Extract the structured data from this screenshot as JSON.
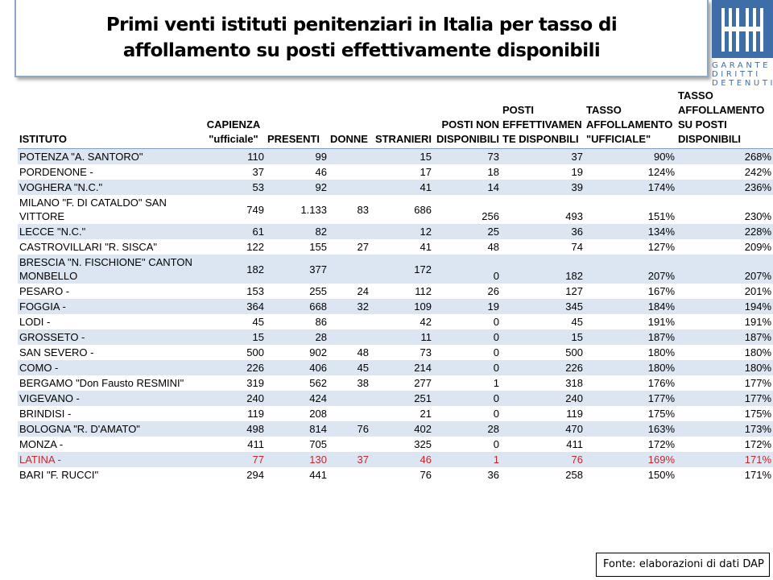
{
  "title": "Primi venti istituti penitenziari in Italia per tasso di affollamento su posti effettivamente disponibili",
  "logo": {
    "lines": [
      "GARANTE",
      "DIRITTI",
      "DETENUTI"
    ]
  },
  "table": {
    "headers": {
      "istituto": "ISTITUTO",
      "capienza_l1": "CAPIENZA",
      "capienza_l2": "\"ufficiale\"",
      "presenti": "PRESENTI",
      "donne": "DONNE",
      "stranieri": "STRANIERI",
      "posti_non_l1": "POSTI NON",
      "posti_non_l2": "DISPONIBILI",
      "posti_eff_l1": "POSTI",
      "posti_eff_l2": "EFFETTIVAMEN",
      "posti_eff_l3": "TE DISPONBILI",
      "tasso_uff_l1": "TASSO",
      "tasso_uff_l2": "AFFOLLAMENTO",
      "tasso_uff_l3": "\"UFFICIALE\"",
      "tasso_disp_l1": "TASSO",
      "tasso_disp_l2": "AFFOLLAMENTO",
      "tasso_disp_l3": "SU POSTI",
      "tasso_disp_l4": "DISPONIBILI"
    },
    "rows": [
      {
        "istituto": "POTENZA \"A. SANTORO\"",
        "capienza": "110",
        "presenti": "99",
        "donne": "",
        "stranieri": "15",
        "posti_non": "73",
        "posti_eff": "37",
        "tasso_uff": "90%",
        "tasso_disp": "268%"
      },
      {
        "istituto": "PORDENONE -",
        "capienza": "37",
        "presenti": "46",
        "donne": "",
        "stranieri": "17",
        "posti_non": "18",
        "posti_eff": "19",
        "tasso_uff": "124%",
        "tasso_disp": "242%"
      },
      {
        "istituto": "VOGHERA \"N.C.\"",
        "capienza": "53",
        "presenti": "92",
        "donne": "",
        "stranieri": "41",
        "posti_non": "14",
        "posti_eff": "39",
        "tasso_uff": "174%",
        "tasso_disp": "236%"
      },
      {
        "istituto": "MILANO \"F. DI CATALDO\" SAN VITTORE",
        "capienza": "749",
        "presenti": "1.133",
        "donne": "83",
        "stranieri": "686",
        "posti_non": "256",
        "posti_eff": "493",
        "tasso_uff": "151%",
        "tasso_disp": "230%"
      },
      {
        "istituto": "LECCE \"N.C.\"",
        "capienza": "61",
        "presenti": "82",
        "donne": "",
        "stranieri": "12",
        "posti_non": "25",
        "posti_eff": "36",
        "tasso_uff": "134%",
        "tasso_disp": "228%"
      },
      {
        "istituto": "CASTROVILLARI \"R. SISCA\"",
        "capienza": "122",
        "presenti": "155",
        "donne": "27",
        "stranieri": "41",
        "posti_non": "48",
        "posti_eff": "74",
        "tasso_uff": "127%",
        "tasso_disp": "209%"
      },
      {
        "istituto": "BRESCIA \"N. FISCHIONE\" CANTON MONBELLO",
        "capienza": "182",
        "presenti": "377",
        "donne": "",
        "stranieri": "172",
        "posti_non": "0",
        "posti_eff": "182",
        "tasso_uff": "207%",
        "tasso_disp": "207%"
      },
      {
        "istituto": "PESARO -",
        "capienza": "153",
        "presenti": "255",
        "donne": "24",
        "stranieri": "112",
        "posti_non": "26",
        "posti_eff": "127",
        "tasso_uff": "167%",
        "tasso_disp": "201%"
      },
      {
        "istituto": "FOGGIA -",
        "capienza": "364",
        "presenti": "668",
        "donne": "32",
        "stranieri": "109",
        "posti_non": "19",
        "posti_eff": "345",
        "tasso_uff": "184%",
        "tasso_disp": "194%"
      },
      {
        "istituto": "LODI -",
        "capienza": "45",
        "presenti": "86",
        "donne": "",
        "stranieri": "42",
        "posti_non": "0",
        "posti_eff": "45",
        "tasso_uff": "191%",
        "tasso_disp": "191%"
      },
      {
        "istituto": "GROSSETO -",
        "capienza": "15",
        "presenti": "28",
        "donne": "",
        "stranieri": "11",
        "posti_non": "0",
        "posti_eff": "15",
        "tasso_uff": "187%",
        "tasso_disp": "187%"
      },
      {
        "istituto": "SAN SEVERO -",
        "capienza": "500",
        "presenti": "902",
        "donne": "48",
        "stranieri": "73",
        "posti_non": "0",
        "posti_eff": "500",
        "tasso_uff": "180%",
        "tasso_disp": "180%"
      },
      {
        "istituto": "COMO -",
        "capienza": "226",
        "presenti": "406",
        "donne": "45",
        "stranieri": "214",
        "posti_non": "0",
        "posti_eff": "226",
        "tasso_uff": "180%",
        "tasso_disp": "180%"
      },
      {
        "istituto": "BERGAMO \"Don Fausto RESMINI\"",
        "capienza": "319",
        "presenti": "562",
        "donne": "38",
        "stranieri": "277",
        "posti_non": "1",
        "posti_eff": "318",
        "tasso_uff": "176%",
        "tasso_disp": "177%"
      },
      {
        "istituto": "VIGEVANO -",
        "capienza": "240",
        "presenti": "424",
        "donne": "",
        "stranieri": "251",
        "posti_non": "0",
        "posti_eff": "240",
        "tasso_uff": "177%",
        "tasso_disp": "177%"
      },
      {
        "istituto": "BRINDISI -",
        "capienza": "119",
        "presenti": "208",
        "donne": "",
        "stranieri": "21",
        "posti_non": "0",
        "posti_eff": "119",
        "tasso_uff": "175%",
        "tasso_disp": "175%"
      },
      {
        "istituto": "BOLOGNA \"R. D'AMATO\"",
        "capienza": "498",
        "presenti": "814",
        "donne": "76",
        "stranieri": "402",
        "posti_non": "28",
        "posti_eff": "470",
        "tasso_uff": "163%",
        "tasso_disp": "173%"
      },
      {
        "istituto": "MONZA -",
        "capienza": "411",
        "presenti": "705",
        "donne": "",
        "stranieri": "325",
        "posti_non": "0",
        "posti_eff": "411",
        "tasso_uff": "172%",
        "tasso_disp": "172%"
      },
      {
        "istituto": "LATINA -",
        "capienza": "77",
        "presenti": "130",
        "donne": "37",
        "stranieri": "46",
        "posti_non": "1",
        "posti_eff": "76",
        "tasso_uff": "169%",
        "tasso_disp": "171%",
        "highlight": true
      },
      {
        "istituto": "BARI \"F. RUCCI\"",
        "capienza": "294",
        "presenti": "441",
        "donne": "",
        "stranieri": "76",
        "posti_non": "36",
        "posti_eff": "258",
        "tasso_uff": "150%",
        "tasso_disp": "171%"
      }
    ]
  },
  "source": "Fonte: elaborazioni di dati DAP",
  "colors": {
    "highlight": "#c0282e",
    "band": "#dce6f2",
    "logo": "#3d6ea8",
    "frame": "#8ea7c6"
  }
}
